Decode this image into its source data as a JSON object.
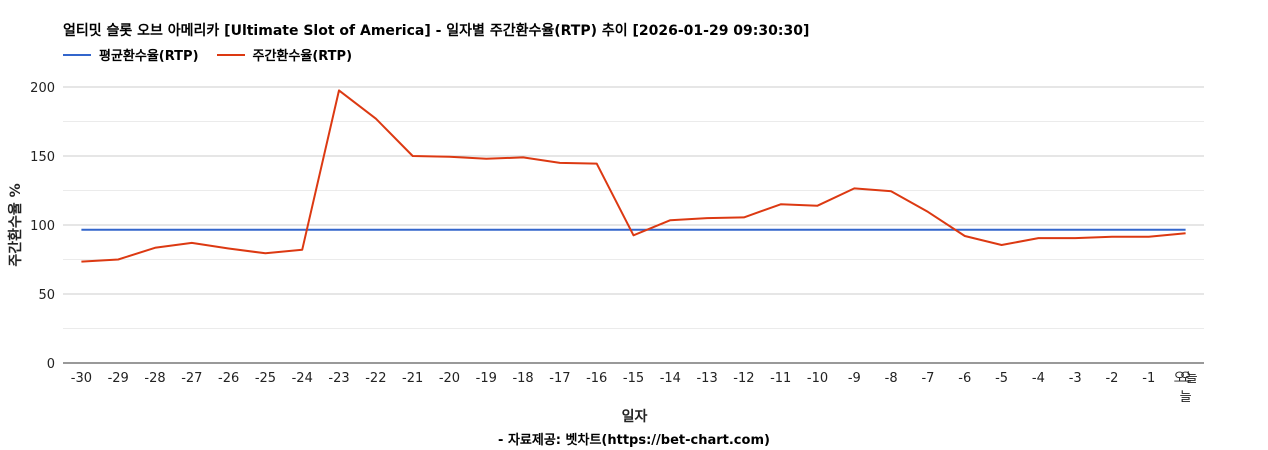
{
  "chart_data": {
    "type": "line",
    "title": "얼티밋 슬롯 오브 아메리카 [Ultimate Slot of America] - 일자별 주간환수율(RTP) 추이 [2026-01-29 09:30:30]",
    "xlabel": "일자",
    "ylabel": "주간환수율 %",
    "ylim": [
      0,
      200
    ],
    "yticks": [
      0,
      50,
      100,
      150,
      200
    ],
    "grid": true,
    "legend_position": "top-left",
    "categories": [
      "-30",
      "-29",
      "-28",
      "-27",
      "-26",
      "-25",
      "-24",
      "-23",
      "-22",
      "-21",
      "-20",
      "-19",
      "-18",
      "-17",
      "-16",
      "-15",
      "-14",
      "-13",
      "-12",
      "-11",
      "-10",
      "-9",
      "-8",
      "-7",
      "-6",
      "-5",
      "-4",
      "-3",
      "-2",
      "-1",
      "오늘"
    ],
    "series": [
      {
        "name": "평균환수율(RTP)",
        "color": "#3366cc",
        "values": [
          96.5,
          96.5,
          96.5,
          96.5,
          96.5,
          96.5,
          96.5,
          96.5,
          96.5,
          96.5,
          96.5,
          96.5,
          96.5,
          96.5,
          96.5,
          96.5,
          96.5,
          96.5,
          96.5,
          96.5,
          96.5,
          96.5,
          96.5,
          96.5,
          96.5,
          96.5,
          96.5,
          96.5,
          96.5,
          96.5,
          96.5
        ]
      },
      {
        "name": "주간환수율(RTP)",
        "color": "#dc3912",
        "values": [
          73.5,
          75,
          83.5,
          87,
          83,
          79.5,
          82,
          197.5,
          177,
          150,
          149.5,
          148,
          149,
          145,
          144.5,
          92.5,
          103.5,
          105,
          105.5,
          115,
          114,
          126.5,
          124.5,
          109.5,
          92,
          85.5,
          90.5,
          90.5,
          91.5,
          91.5,
          94
        ]
      }
    ]
  },
  "footer": "- 자료제공: 벳차트(https://bet-chart.com)"
}
